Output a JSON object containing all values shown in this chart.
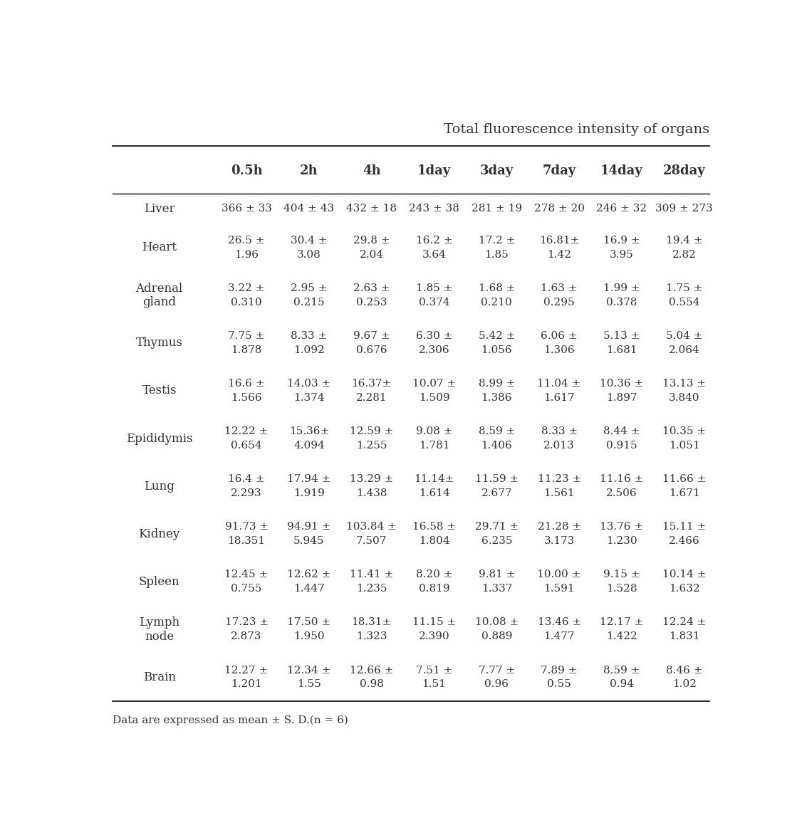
{
  "title": "Total fluorescence intensity of organs",
  "col_headers": [
    "0.5h",
    "2h",
    "4h",
    "1day",
    "3day",
    "7day",
    "14day",
    "28day"
  ],
  "row_labels": [
    "Liver",
    "Heart",
    "Adrenal\ngland",
    "Thymus",
    "Testis",
    "Epididymis",
    "Lung",
    "Kidney",
    "Spleen",
    "Lymph\nnode",
    "Brain"
  ],
  "cell_data": [
    [
      "366 ± 33",
      "404 ± 43",
      "432 ± 18",
      "243 ± 38",
      "281 ± 19",
      "278 ± 20",
      "246 ± 32",
      "309 ± 273"
    ],
    [
      "26.5 ±\n1.96",
      "30.4 ±\n3.08",
      "29.8 ±\n2.04",
      "16.2 ±\n3.64",
      "17.2 ±\n1.85",
      "16.81±\n1.42",
      "16.9 ±\n3.95",
      "19.4 ±\n2.82"
    ],
    [
      "3.22 ±\n0.310",
      "2.95 ±\n0.215",
      "2.63 ±\n0.253",
      "1.85 ±\n0.374",
      "1.68 ±\n0.210",
      "1.63 ±\n0.295",
      "1.99 ±\n0.378",
      "1.75 ±\n0.554"
    ],
    [
      "7.75 ±\n1.878",
      "8.33 ±\n1.092",
      "9.67 ±\n0.676",
      "6.30 ±\n2.306",
      "5.42 ±\n1.056",
      "6.06 ±\n1.306",
      "5.13 ±\n1.681",
      "5.04 ±\n2.064"
    ],
    [
      "16.6 ±\n1.566",
      "14.03 ±\n1.374",
      "16.37±\n2.281",
      "10.07 ±\n1.509",
      "8.99 ±\n1.386",
      "11.04 ±\n1.617",
      "10.36 ±\n1.897",
      "13.13 ±\n3.840"
    ],
    [
      "12.22 ±\n0.654",
      "15.36±\n4.094",
      "12.59 ±\n1.255",
      "9.08 ±\n1.781",
      "8.59 ±\n1.406",
      "8.33 ±\n2.013",
      "8.44 ±\n0.915",
      "10.35 ±\n1.051"
    ],
    [
      "16.4 ±\n2.293",
      "17.94 ±\n1.919",
      "13.29 ±\n1.438",
      "11.14±\n1.614",
      "11.59 ±\n2.677",
      "11.23 ±\n1.561",
      "11.16 ±\n2.506",
      "11.66 ±\n1.671"
    ],
    [
      "91.73 ±\n18.351",
      "94.91 ±\n5.945",
      "103.84 ±\n7.507",
      "16.58 ±\n1.804",
      "29.71 ±\n6.235",
      "21.28 ±\n3.173",
      "13.76 ±\n1.230",
      "15.11 ±\n2.466"
    ],
    [
      "12.45 ±\n0.755",
      "12.62 ±\n1.447",
      "11.41 ±\n1.235",
      "8.20 ±\n0.819",
      "9.81 ±\n1.337",
      "10.00 ±\n1.591",
      "9.15 ±\n1.528",
      "10.14 ±\n1.632"
    ],
    [
      "17.23 ±\n2.873",
      "17.50 ±\n1.950",
      "18.31±\n1.323",
      "11.15 ±\n2.390",
      "10.08 ±\n0.889",
      "13.46 ±\n1.477",
      "12.17 ±\n1.422",
      "12.24 ±\n1.831"
    ],
    [
      "12.27 ±\n1.201",
      "12.34 ±\n1.55",
      "12.66 ±\n0.98",
      "7.51 ±\n1.51",
      "7.77 ±\n0.96",
      "7.89 ±\n0.55",
      "8.59 ±\n0.94",
      "8.46 ±\n1.02"
    ]
  ],
  "footnote": "Data are expressed as mean ± S. D.(n = 6)",
  "bg_color": "#ffffff",
  "text_color": "#333333",
  "header_fontsize": 13,
  "cell_fontsize": 11,
  "row_label_fontsize": 12,
  "title_fontsize": 14,
  "footnote_fontsize": 11
}
